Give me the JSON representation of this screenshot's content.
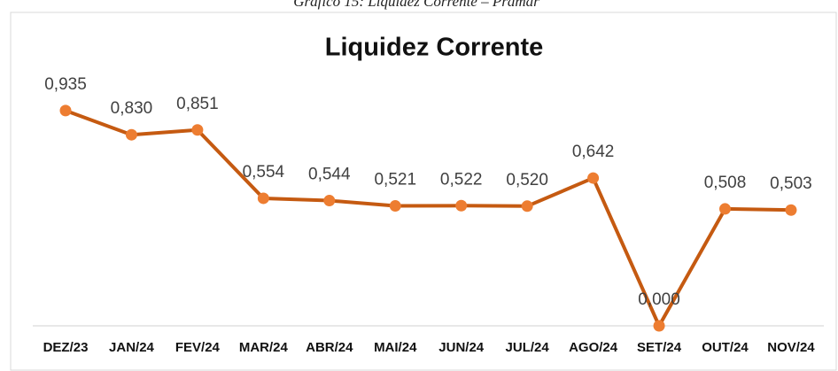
{
  "chart_data": {
    "type": "line",
    "caption": "Gráfico 15: Liquidez Corrente – Pramar",
    "title": "Liquidez Corrente",
    "categories": [
      "DEZ/23",
      "JAN/24",
      "FEV/24",
      "MAR/24",
      "ABR/24",
      "MAI/24",
      "JUN/24",
      "JUL/24",
      "AGO/24",
      "SET/24",
      "OUT/24",
      "NOV/24"
    ],
    "series": [
      {
        "name": "Liquidez Corrente",
        "color": "#c55a11",
        "marker_color": "#ed7d31",
        "values": [
          0.935,
          0.83,
          0.851,
          0.554,
          0.544,
          0.521,
          0.522,
          0.52,
          0.642,
          0.0,
          0.508,
          0.503
        ],
        "value_labels": [
          "0,935",
          "0,830",
          "0,851",
          "0,554",
          "0,544",
          "0,521",
          "0,522",
          "0,520",
          "0,642",
          "0,000",
          "0,508",
          "0,503"
        ]
      }
    ]
  }
}
